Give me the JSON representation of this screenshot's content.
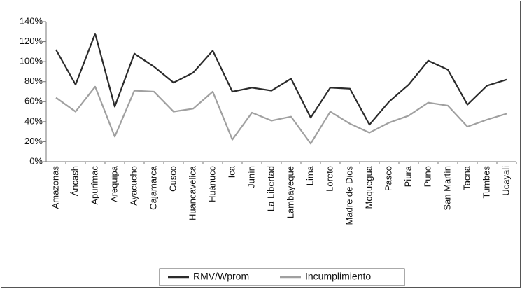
{
  "chart_data": {
    "type": "line",
    "categories": [
      "Amazonas",
      "Áncash",
      "Apurímac",
      "Arequipa",
      "Ayacucho",
      "Cajamarca",
      "Cusco",
      "Huancavelica",
      "Huánuco",
      "Ica",
      "Junín",
      "La Libertad",
      "Lambayeque",
      "Lima",
      "Loreto",
      "Madre de Dios",
      "Moquegua",
      "Pasco",
      "Piura",
      "Puno",
      "San Martín",
      "Tacna",
      "Tumbes",
      "Ucayali"
    ],
    "series": [
      {
        "name": "RMV/Wprom",
        "color": "#2b2b2b",
        "values": [
          112,
          77,
          128,
          55,
          108,
          95,
          79,
          89,
          111,
          70,
          74,
          71,
          83,
          44,
          74,
          73,
          37,
          60,
          77,
          101,
          92,
          57,
          76,
          82
        ]
      },
      {
        "name": "Incumplimiento",
        "color": "#a0a0a0",
        "values": [
          64,
          50,
          75,
          25,
          71,
          70,
          50,
          53,
          70,
          22,
          49,
          41,
          45,
          18,
          50,
          38,
          29,
          39,
          46,
          59,
          56,
          35,
          42,
          48
        ]
      }
    ],
    "ylim": [
      0,
      140
    ],
    "yticks": [
      {
        "value": 0,
        "label": "0%"
      },
      {
        "value": 20,
        "label": "20%"
      },
      {
        "value": 40,
        "label": "40%"
      },
      {
        "value": 60,
        "label": "60%"
      },
      {
        "value": 80,
        "label": "80%"
      },
      {
        "value": 100,
        "label": "100%"
      },
      {
        "value": 120,
        "label": "120%"
      },
      {
        "value": 140,
        "label": "140%"
      }
    ],
    "grid": false,
    "legend": "bottom"
  }
}
